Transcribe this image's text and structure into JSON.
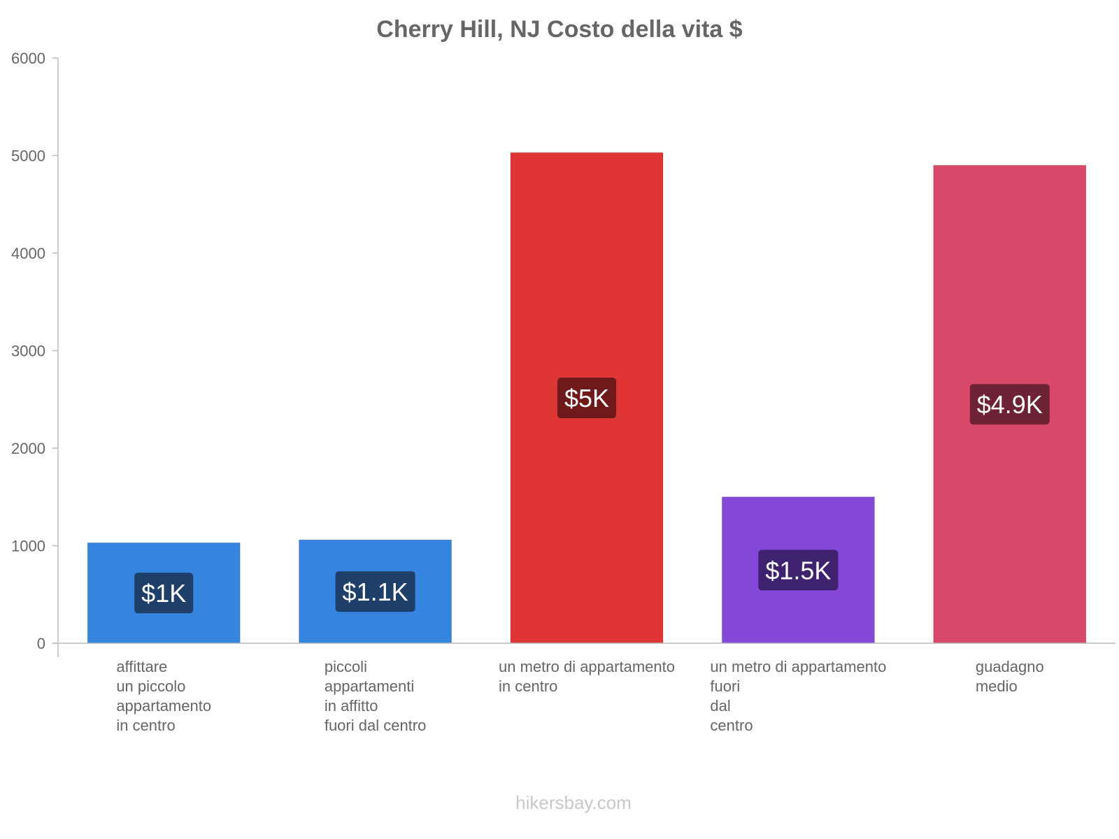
{
  "chart_data": {
    "type": "bar",
    "title": "Cherry Hill, NJ Costo della vita $",
    "xlabel": "",
    "ylabel": "",
    "ylim": [
      0,
      6000
    ],
    "yticks": [
      0,
      1000,
      2000,
      3000,
      4000,
      5000,
      6000
    ],
    "grid": false,
    "categories": [
      [
        "affittare",
        "un piccolo",
        "appartamento",
        "in centro"
      ],
      [
        "piccoli",
        "appartamenti",
        "in affitto",
        "fuori dal centro"
      ],
      [
        "un metro di appartamento",
        "in centro"
      ],
      [
        "un metro di appartamento",
        "fuori",
        "dal",
        "centro"
      ],
      [
        "guadagno",
        "medio"
      ]
    ],
    "values": [
      1030,
      1060,
      5030,
      1500,
      4900
    ],
    "value_labels": [
      "$1K",
      "$1.1K",
      "$5K",
      "$1.5K",
      "$4.9K"
    ],
    "bar_colors": [
      "#3584e0",
      "#3584e0",
      "#e03535",
      "#8448d8",
      "#d84868"
    ],
    "label_bg_colors": [
      "#1e3f6a",
      "#1e3f6a",
      "#6e1a1a",
      "#3e2270",
      "#6e2236"
    ]
  },
  "footer": {
    "watermark": "hikersbay.com"
  }
}
